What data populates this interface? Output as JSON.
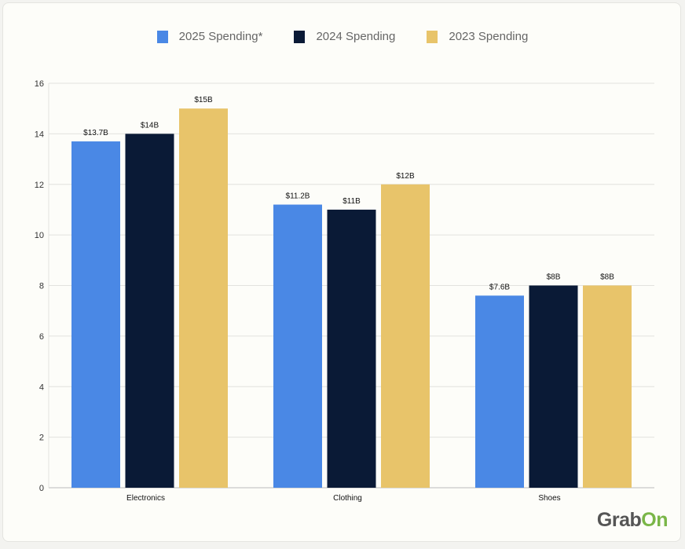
{
  "chart_data": {
    "type": "bar",
    "categories": [
      "Electronics",
      "Clothing",
      "Shoes"
    ],
    "series": [
      {
        "name": "2025 Spending*",
        "values": [
          13.7,
          11.2,
          7.6
        ],
        "labels": [
          "$13.7B",
          "$11.2B",
          "$7.6B"
        ],
        "color": "#4a88e5"
      },
      {
        "name": "2024 Spending",
        "values": [
          14,
          11,
          8
        ],
        "labels": [
          "$14B",
          "$11B",
          "$8B"
        ],
        "color": "#0a1a36"
      },
      {
        "name": "2023 Spending",
        "values": [
          15,
          12,
          8
        ],
        "labels": [
          "$15B",
          "$12B",
          "$8B"
        ],
        "color": "#e8c46a"
      }
    ],
    "yticks": [
      0,
      2,
      4,
      6,
      8,
      10,
      12,
      14,
      16
    ],
    "ylim": [
      0,
      16
    ],
    "grid": true,
    "legend": "top-center",
    "title": "",
    "xlabel": "",
    "ylabel": ""
  },
  "brand": {
    "logo_main": "Grab",
    "logo_accent": "On"
  }
}
